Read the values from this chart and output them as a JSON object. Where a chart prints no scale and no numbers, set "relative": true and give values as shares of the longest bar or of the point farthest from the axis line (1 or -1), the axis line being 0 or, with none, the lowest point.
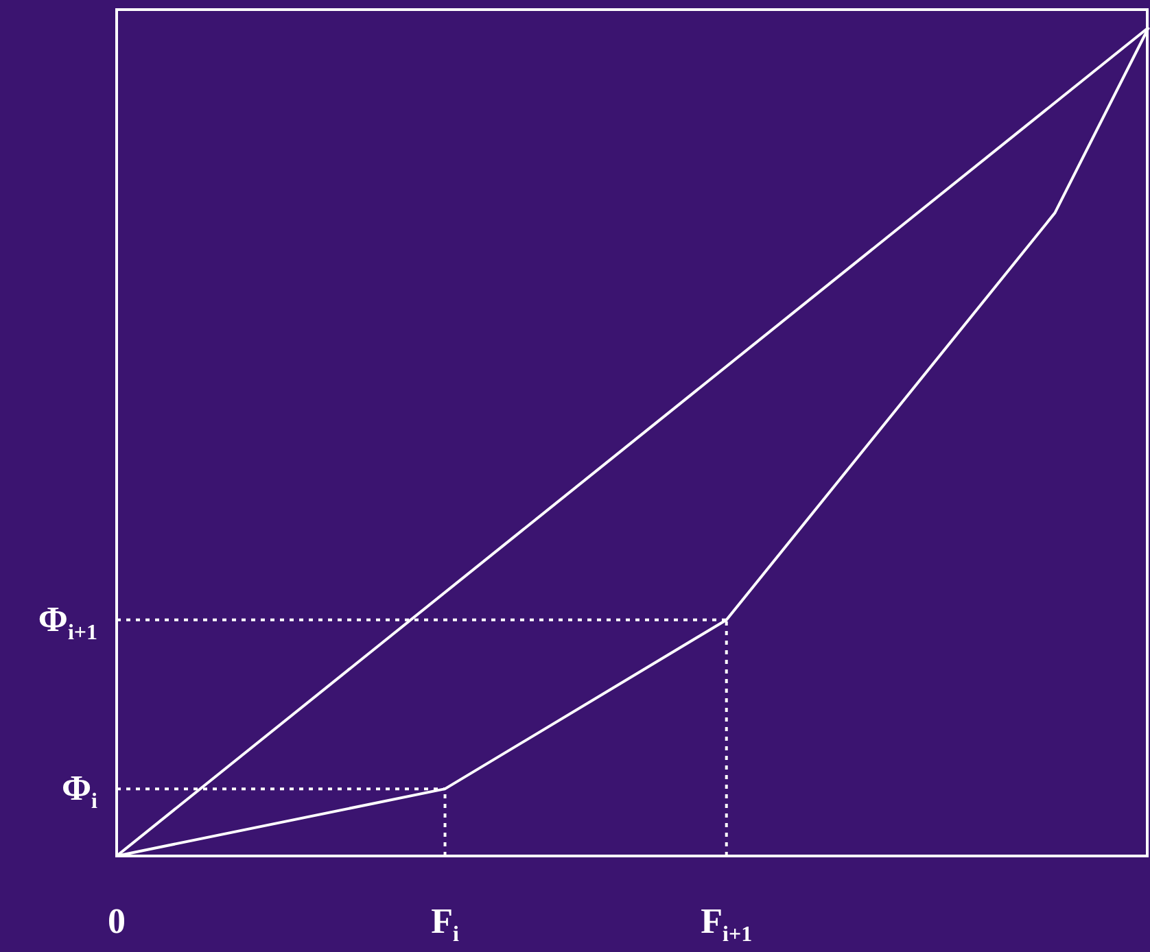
{
  "chart_data": {
    "type": "line",
    "relative": true,
    "categories": [
      "0",
      null,
      null,
      null,
      null,
      null,
      null,
      "F$_{i}$",
      null,
      null,
      null,
      null,
      null,
      "F$_{i+1}$",
      null,
      null,
      null,
      null,
      null,
      null,
      null,
      null,
      null
    ],
    "marker": "none",
    "series": [
      {
        "color": "#ffffff",
        "values": [
          0,
          null,
          null,
          null,
          null,
          null,
          null,
          null,
          null,
          null,
          null,
          null,
          null,
          null,
          null,
          null,
          null,
          null,
          null,
          null,
          null,
          null,
          1
        ]
      },
      {
        "color": "#ffffff",
        "values": [
          0,
          null,
          null,
          null,
          null,
          null,
          null,
          0.081,
          null,
          null,
          null,
          null,
          null,
          0.285,
          null,
          null,
          null,
          null,
          null,
          null,
          0.776,
          null,
          1
        ]
      }
    ],
    "ref_lines": [
      {
        "axis": "y",
        "value": 0.081,
        "label": "Φ$_{i}$",
        "color": "#ffffff",
        "line_style": "dotted"
      },
      {
        "axis": "y",
        "value": 0.285,
        "label": "Φ$_{i+1}$",
        "color": "#ffffff",
        "line_style": "dotted"
      },
      {
        "axis": "x",
        "value": "F$_{i}$",
        "color": "#ffffff",
        "line_style": "dotted"
      },
      {
        "axis": "x",
        "value": "F$_{i+1}$",
        "color": "#ffffff",
        "line_style": "dotted"
      }
    ]
  }
}
